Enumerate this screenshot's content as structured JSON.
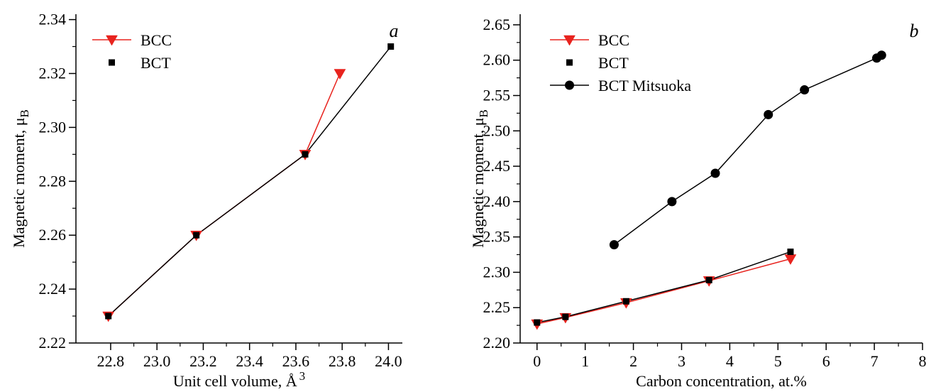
{
  "chart_data": [
    {
      "type": "line",
      "panel_label": "a",
      "xlabel": "Unit cell volume, Å",
      "xlabel_sup": "3",
      "ylabel": "Magnetic moment, μ",
      "ylabel_sub": "B",
      "xlim": [
        22.65,
        24.06
      ],
      "ylim": [
        2.22,
        2.342
      ],
      "xticks": [
        22.8,
        23.0,
        23.2,
        23.4,
        23.6,
        23.8,
        24.0
      ],
      "xtick_labels": [
        "22.8",
        "23.0",
        "23.2",
        "23.4",
        "23.6",
        "23.8",
        "24.0"
      ],
      "yticks": [
        2.22,
        2.24,
        2.26,
        2.28,
        2.3,
        2.32,
        2.34
      ],
      "ytick_labels": [
        "2.22",
        "2.24",
        "2.26",
        "2.28",
        "2.30",
        "2.32",
        "2.34"
      ],
      "legend_position": "top-left",
      "series": [
        {
          "name": "BCC",
          "color": "#e8231e",
          "marker": "triangle-down",
          "line": true,
          "x": [
            22.79,
            23.17,
            23.64,
            23.79
          ],
          "y": [
            2.23,
            2.26,
            2.29,
            2.32
          ]
        },
        {
          "name": "BCT",
          "color": "#000000",
          "marker": "square",
          "line": true,
          "x": [
            22.79,
            23.17,
            23.64,
            24.01
          ],
          "y": [
            2.23,
            2.26,
            2.29,
            2.33
          ]
        }
      ]
    },
    {
      "type": "line",
      "panel_label": "b",
      "xlabel": "Carbon concentration, at.%",
      "ylabel": "Magnetic moment, μ",
      "ylabel_sub": "B",
      "xlim": [
        -0.35,
        8.0
      ],
      "ylim": [
        2.2,
        2.665
      ],
      "xticks": [
        0,
        1,
        2,
        3,
        4,
        5,
        6,
        7,
        8
      ],
      "xtick_labels": [
        "0",
        "1",
        "2",
        "3",
        "4",
        "5",
        "6",
        "7",
        "8"
      ],
      "yticks": [
        2.2,
        2.25,
        2.3,
        2.35,
        2.4,
        2.45,
        2.5,
        2.55,
        2.6,
        2.65
      ],
      "ytick_labels": [
        "2.20",
        "2.25",
        "2.30",
        "2.35",
        "2.40",
        "2.45",
        "2.50",
        "2.55",
        "2.60",
        "2.65"
      ],
      "legend_position": "top-left",
      "series": [
        {
          "name": "BCC",
          "color": "#e8231e",
          "marker": "triangle-down",
          "line": true,
          "x": [
            0,
            0.59,
            1.85,
            3.57,
            5.26
          ],
          "y": [
            2.227,
            2.236,
            2.257,
            2.288,
            2.319
          ]
        },
        {
          "name": "BCT",
          "color": "#000000",
          "marker": "square",
          "line": true,
          "x": [
            0,
            0.59,
            1.85,
            3.57,
            5.26
          ],
          "y": [
            2.229,
            2.237,
            2.259,
            2.289,
            2.329
          ]
        },
        {
          "name": "BCT Mitsuoka",
          "color": "#000000",
          "marker": "circle",
          "line": true,
          "x": [
            1.6,
            2.8,
            3.7,
            4.8,
            5.55,
            7.05,
            7.15
          ],
          "y": [
            2.339,
            2.4,
            2.44,
            2.523,
            2.558,
            2.603,
            2.607
          ]
        }
      ]
    }
  ]
}
